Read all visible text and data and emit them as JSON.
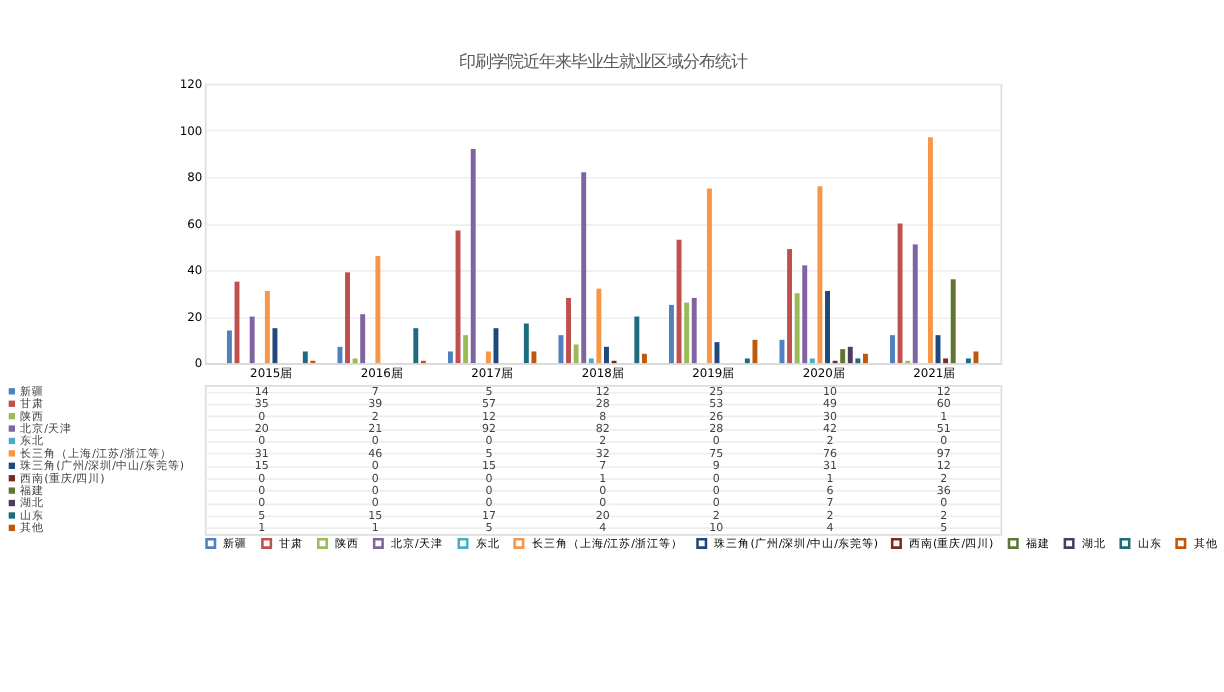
{
  "chart_data": {
    "type": "bar",
    "title": "印刷学院近年来毕业生就业区域分布统计",
    "categories": [
      "2015届",
      "2016届",
      "2017届",
      "2018届",
      "2019届",
      "2020届",
      "2021届"
    ],
    "series": [
      {
        "name": "新疆",
        "color": "#4f81bd",
        "values": [
          14,
          7,
          5,
          12,
          25,
          10,
          12
        ]
      },
      {
        "name": "甘肃",
        "color": "#c0504d",
        "values": [
          35,
          39,
          57,
          28,
          53,
          49,
          60
        ]
      },
      {
        "name": "陕西",
        "color": "#9bbb59",
        "values": [
          0,
          2,
          12,
          8,
          26,
          30,
          1
        ]
      },
      {
        "name": "北京/天津",
        "color": "#8064a2",
        "values": [
          20,
          21,
          92,
          82,
          28,
          42,
          51
        ]
      },
      {
        "name": "东北",
        "color": "#4bacc6",
        "values": [
          0,
          0,
          0,
          2,
          0,
          2,
          0
        ]
      },
      {
        "name": "长三角（上海/江苏/浙江等）",
        "color": "#f79646",
        "values": [
          31,
          46,
          5,
          32,
          75,
          76,
          97
        ]
      },
      {
        "name": "珠三角(广州/深圳/中山/东莞等)",
        "color": "#1f497d",
        "values": [
          15,
          0,
          15,
          7,
          9,
          31,
          12
        ]
      },
      {
        "name": "西南(重庆/四川)",
        "color": "#772c2a",
        "values": [
          0,
          0,
          0,
          1,
          0,
          1,
          2
        ]
      },
      {
        "name": "福建",
        "color": "#5f7530",
        "values": [
          0,
          0,
          0,
          0,
          0,
          6,
          36
        ]
      },
      {
        "name": "湖北",
        "color": "#4d3b62",
        "values": [
          0,
          0,
          0,
          0,
          0,
          7,
          0
        ]
      },
      {
        "name": "山东",
        "color": "#1d6b7c",
        "values": [
          5,
          15,
          17,
          20,
          2,
          2,
          2
        ]
      },
      {
        "name": "其他",
        "color": "#c0580b",
        "values": [
          1,
          1,
          5,
          4,
          10,
          4,
          5
        ]
      }
    ],
    "ylim": [
      0,
      120
    ],
    "yticks": [
      0,
      20,
      40,
      60,
      80,
      100,
      120
    ],
    "grid": "y",
    "legend": "bottom",
    "data_labels": true
  }
}
